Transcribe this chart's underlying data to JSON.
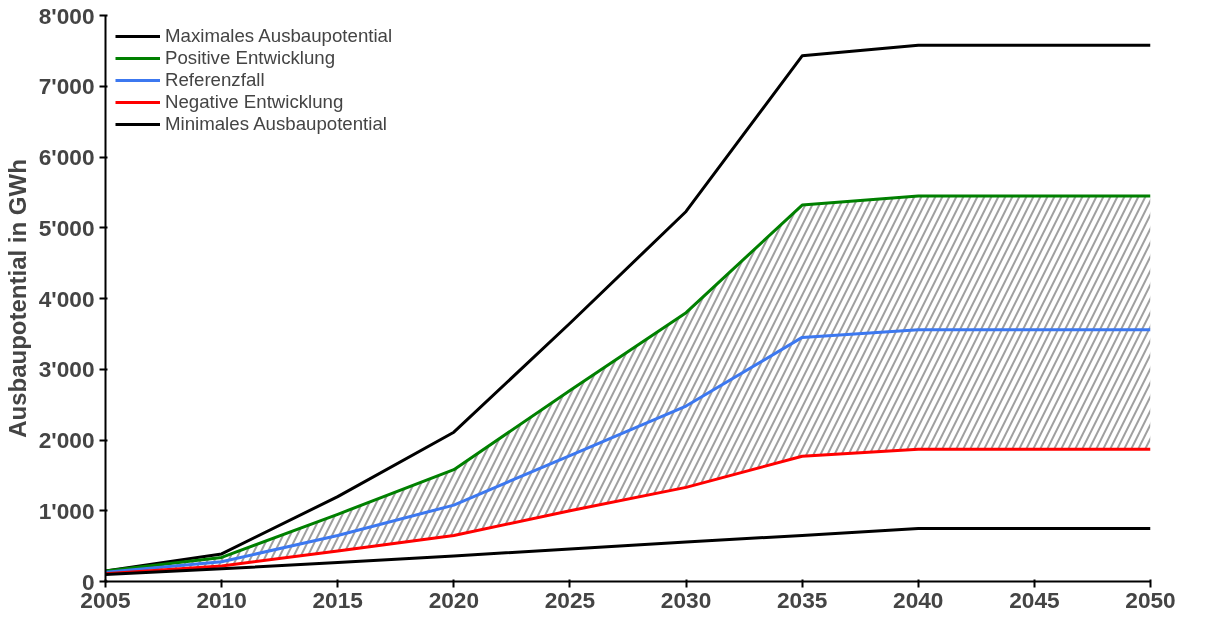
{
  "chart_data": {
    "type": "line",
    "ylabel": "Ausbaupotential in GWh",
    "x": [
      2005,
      2010,
      2015,
      2020,
      2025,
      2030,
      2035,
      2040,
      2045,
      2050
    ],
    "xlim": [
      2005,
      2050
    ],
    "xticks": [
      2005,
      2010,
      2015,
      2020,
      2025,
      2030,
      2035,
      2040,
      2045,
      2050
    ],
    "ylim": [
      0,
      8000
    ],
    "yticks": [
      0,
      {
        "value": 1000,
        "label": "1'000"
      },
      {
        "value": 2000,
        "label": "2'000"
      },
      {
        "value": 3000,
        "label": "3'000"
      },
      {
        "value": 4000,
        "label": "4'000"
      },
      {
        "value": 5000,
        "label": "5'000"
      },
      {
        "value": 6000,
        "label": "6'000"
      },
      {
        "value": 7000,
        "label": "7'000"
      },
      {
        "value": 8000,
        "label": "8'000"
      }
    ],
    "grid": false,
    "legend": "top left",
    "marker": "none",
    "line_style": "solid",
    "series": [
      {
        "name": "Maximales Ausbaupotential",
        "color": "#000000",
        "values": [
          150,
          390,
          1200,
          2110,
          3650,
          5230,
          7430,
          7580,
          7580,
          7580
        ]
      },
      {
        "name": "Positive Entwicklung",
        "color": "#008000",
        "values": [
          150,
          340,
          950,
          1580,
          2700,
          3800,
          5320,
          5450,
          5450,
          5450
        ]
      },
      {
        "name": "Referenzfall",
        "color": "#3c78f0",
        "values": [
          130,
          280,
          650,
          1080,
          1780,
          2480,
          3450,
          3560,
          3560,
          3560
        ],
        "lower": [
          110,
          220,
          430,
          650,
          1000,
          1330,
          1770,
          1870,
          1870,
          1870
        ],
        "upper": [
          150,
          340,
          950,
          1580,
          2700,
          3800,
          5320,
          5450,
          5450,
          5450
        ]
      },
      {
        "name": "Negative Entwicklung",
        "color": "#ff0000",
        "values": [
          110,
          220,
          430,
          650,
          1000,
          1330,
          1770,
          1870,
          1870,
          1870
        ]
      },
      {
        "name": "Minimales Ausbaupotential",
        "color": "#000000",
        "values": [
          100,
          180,
          270,
          360,
          460,
          560,
          650,
          750,
          750,
          750
        ]
      }
    ]
  }
}
